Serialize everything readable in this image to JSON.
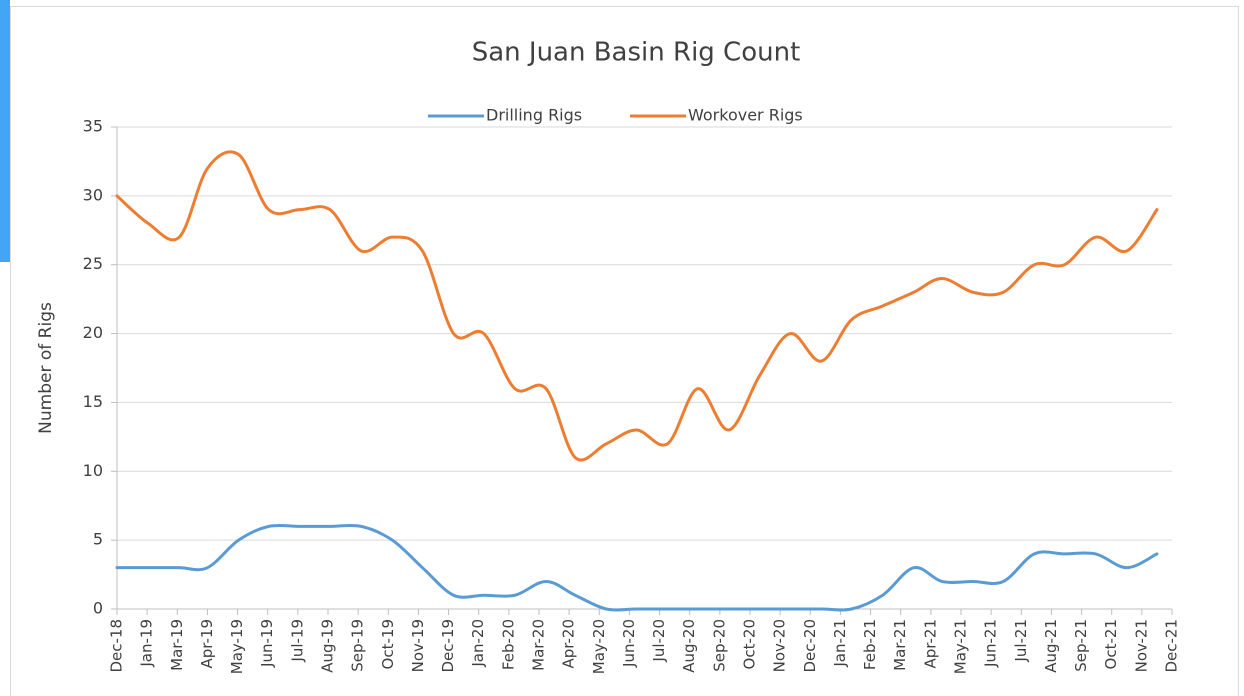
{
  "chart_data": {
    "type": "line",
    "title": "San Juan Basin Rig Count",
    "y_label": "Number of Rigs",
    "x": [
      "Dec-18",
      "Jan-19",
      "Feb-19",
      "Mar-19",
      "Apr-19",
      "May-19",
      "Jun-19",
      "Jul-19",
      "Aug-19",
      "Sep-19",
      "Oct-19",
      "Nov-19",
      "Dec-19",
      "Jan-20",
      "Feb-20",
      "Mar-20",
      "Apr-20",
      "May-20",
      "Jun-20",
      "Jul-20",
      "Aug-20",
      "Sep-20",
      "Oct-20",
      "Nov-20",
      "Dec-20",
      "Jan-21",
      "Feb-21",
      "Mar-21",
      "Apr-21",
      "May-21",
      "Jun-21",
      "Jul-21",
      "Aug-21",
      "Sep-21",
      "Oct-21"
    ],
    "series": [
      {
        "name": "Drilling Rigs",
        "color": "#5b9bd5",
        "values": [
          3,
          3,
          3,
          3,
          5,
          6,
          6,
          6,
          6,
          5,
          3,
          1,
          1,
          1,
          2,
          1,
          0,
          0,
          0,
          0,
          0,
          0,
          0,
          0,
          0,
          1,
          3,
          2,
          2,
          2,
          4,
          4,
          4,
          3,
          4
        ]
      },
      {
        "name": "Workover Rigs",
        "color": "#ed7d31",
        "values": [
          30,
          28,
          27,
          32,
          33,
          29,
          29,
          29,
          26,
          27,
          26,
          20,
          20,
          16,
          16,
          11,
          12,
          13,
          12,
          16,
          13,
          17,
          20,
          18,
          21,
          22,
          23,
          24,
          23,
          23,
          25,
          25,
          27,
          26,
          29
        ]
      }
    ],
    "xticks": [
      "Dec-18",
      "Jan-19",
      "Mar-19",
      "Apr-19",
      "May-19",
      "Jun-19",
      "Jul-19",
      "Aug-19",
      "Sep-19",
      "Oct-19",
      "Nov-19",
      "Dec-19",
      "Jan-20",
      "Feb-20",
      "Mar-20",
      "Apr-20",
      "May-20",
      "Jun-20",
      "Jul-20",
      "Aug-20",
      "Sep-20",
      "Oct-20",
      "Nov-20",
      "Dec-20",
      "Jan-21",
      "Feb-21",
      "Mar-21",
      "Apr-21",
      "May-21",
      "Jun-21",
      "Jul-21",
      "Aug-21",
      "Sep-21",
      "Oct-21",
      "Nov-21",
      "Dec-21"
    ],
    "ylim": [
      0,
      35
    ],
    "yticks": [
      0,
      5,
      10,
      15,
      20,
      25,
      30,
      35
    ],
    "grid": true,
    "legend": "top"
  }
}
